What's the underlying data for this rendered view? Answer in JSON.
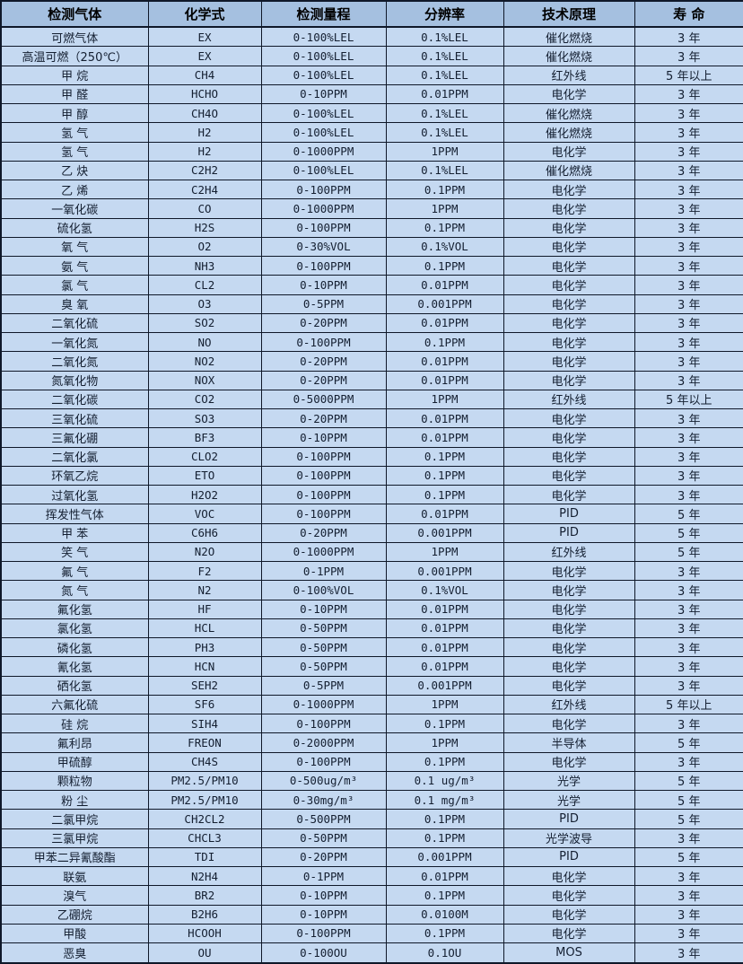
{
  "colors": {
    "header_bg": "#a5c0e0",
    "row_bg": "#c5d9f1",
    "border": "#0f1829",
    "text": "#141f31"
  },
  "table": {
    "columns": [
      "检测气体",
      "化学式",
      "检测量程",
      "分辨率",
      "技术原理",
      "寿 命"
    ],
    "column_keys": [
      "gas",
      "formula",
      "range",
      "resolution",
      "principle",
      "lifespan"
    ],
    "rows": [
      [
        "可燃气体",
        "EX",
        "0-100%LEL",
        "0.1%LEL",
        "催化燃烧",
        "3 年"
      ],
      [
        "高温可燃（250℃）",
        "EX",
        "0-100%LEL",
        "0.1%LEL",
        "催化燃烧",
        "3 年"
      ],
      [
        "甲 烷",
        "CH4",
        "0-100%LEL",
        "0.1%LEL",
        "红外线",
        "5 年以上"
      ],
      [
        "甲 醛",
        "HCHO",
        "0-10PPM",
        "0.01PPM",
        "电化学",
        "3 年"
      ],
      [
        "甲 醇",
        "CH4O",
        "0-100%LEL",
        "0.1%LEL",
        "催化燃烧",
        "3 年"
      ],
      [
        "氢 气",
        "H2",
        "0-100%LEL",
        "0.1%LEL",
        "催化燃烧",
        "3 年"
      ],
      [
        "氢 气",
        "H2",
        "0-1000PPM",
        "1PPM",
        "电化学",
        "3 年"
      ],
      [
        "乙 炔",
        "C2H2",
        "0-100%LEL",
        "0.1%LEL",
        "催化燃烧",
        "3 年"
      ],
      [
        "乙 烯",
        "C2H4",
        "0-100PPM",
        "0.1PPM",
        "电化学",
        "3 年"
      ],
      [
        "一氧化碳",
        "CO",
        "0-1000PPM",
        "1PPM",
        "电化学",
        "3 年"
      ],
      [
        "硫化氢",
        "H2S",
        "0-100PPM",
        "0.1PPM",
        "电化学",
        "3 年"
      ],
      [
        "氧 气",
        "O2",
        "0-30%VOL",
        "0.1%VOL",
        "电化学",
        "3 年"
      ],
      [
        "氨 气",
        "NH3",
        "0-100PPM",
        "0.1PPM",
        "电化学",
        "3 年"
      ],
      [
        "氯 气",
        "CL2",
        "0-10PPM",
        "0.01PPM",
        "电化学",
        "3 年"
      ],
      [
        "臭 氧",
        "O3",
        "0-5PPM",
        "0.001PPM",
        "电化学",
        "3 年"
      ],
      [
        "二氧化硫",
        "SO2",
        "0-20PPM",
        "0.01PPM",
        "电化学",
        "3 年"
      ],
      [
        "一氧化氮",
        "NO",
        "0-100PPM",
        "0.1PPM",
        "电化学",
        "3 年"
      ],
      [
        "二氧化氮",
        "NO2",
        "0-20PPM",
        "0.01PPM",
        "电化学",
        "3 年"
      ],
      [
        "氮氧化物",
        "NOX",
        "0-20PPM",
        "0.01PPM",
        "电化学",
        "3 年"
      ],
      [
        "二氧化碳",
        "CO2",
        "0-5000PPM",
        "1PPM",
        "红外线",
        "5 年以上"
      ],
      [
        "三氧化硫",
        "SO3",
        "0-20PPM",
        "0.01PPM",
        "电化学",
        "3 年"
      ],
      [
        "三氟化硼",
        "BF3",
        "0-10PPM",
        "0.01PPM",
        "电化学",
        "3 年"
      ],
      [
        "二氧化氯",
        "CLO2",
        "0-100PPM",
        "0.1PPM",
        "电化学",
        "3 年"
      ],
      [
        "环氧乙烷",
        "ETO",
        "0-100PPM",
        "0.1PPM",
        "电化学",
        "3 年"
      ],
      [
        "过氧化氢",
        "H2O2",
        "0-100PPM",
        "0.1PPM",
        "电化学",
        "3 年"
      ],
      [
        "挥发性气体",
        "VOC",
        "0-100PPM",
        "0.01PPM",
        "PID",
        "5 年"
      ],
      [
        "甲 苯",
        "C6H6",
        "0-20PPM",
        "0.001PPM",
        "PID",
        "5 年"
      ],
      [
        "笑 气",
        "N2O",
        "0-1000PPM",
        "1PPM",
        "红外线",
        "5 年"
      ],
      [
        "氟 气",
        "F2",
        "0-1PPM",
        "0.001PPM",
        "电化学",
        "3 年"
      ],
      [
        "氮 气",
        "N2",
        "0-100%VOL",
        "0.1%VOL",
        "电化学",
        "3 年"
      ],
      [
        "氟化氢",
        "HF",
        "0-10PPM",
        "0.01PPM",
        "电化学",
        "3 年"
      ],
      [
        "氯化氢",
        "HCL",
        "0-50PPM",
        "0.01PPM",
        "电化学",
        "3 年"
      ],
      [
        "磷化氢",
        "PH3",
        "0-50PPM",
        "0.01PPM",
        "电化学",
        "3 年"
      ],
      [
        "氰化氢",
        "HCN",
        "0-50PPM",
        "0.01PPM",
        "电化学",
        "3 年"
      ],
      [
        "硒化氢",
        "SEH2",
        "0-5PPM",
        "0.001PPM",
        "电化学",
        "3 年"
      ],
      [
        "六氟化硫",
        "SF6",
        "0-1000PPM",
        "1PPM",
        "红外线",
        "5 年以上"
      ],
      [
        "硅 烷",
        "SIH4",
        "0-100PPM",
        "0.1PPM",
        "电化学",
        "3 年"
      ],
      [
        "氟利昂",
        "FREON",
        "0-2000PPM",
        "1PPM",
        "半导体",
        "5 年"
      ],
      [
        "甲硫醇",
        "CH4S",
        "0-100PPM",
        "0.1PPM",
        "电化学",
        "3 年"
      ],
      [
        "颗粒物",
        "PM2.5/PM10",
        "0-500ug/m³",
        "0.1 ug/m³",
        "光学",
        "5 年"
      ],
      [
        "粉 尘",
        "PM2.5/PM10",
        "0-30mg/m³",
        "0.1 mg/m³",
        "光学",
        "5 年"
      ],
      [
        "二氯甲烷",
        "CH2CL2",
        "0-500PPM",
        "0.1PPM",
        "PID",
        "5 年"
      ],
      [
        "三氯甲烷",
        "CHCL3",
        "0-50PPM",
        "0.1PPM",
        "光学波导",
        "3 年"
      ],
      [
        "甲苯二异氰酸酯",
        "TDI",
        "0-20PPM",
        "0.001PPM",
        "PID",
        "5 年"
      ],
      [
        "联氨",
        "N2H4",
        "0-1PPM",
        "0.01PPM",
        "电化学",
        "3 年"
      ],
      [
        "溴气",
        "BR2",
        "0-10PPM",
        "0.1PPM",
        "电化学",
        "3 年"
      ],
      [
        "乙硼烷",
        "B2H6",
        "0-10PPM",
        "0.0100M",
        "电化学",
        "3 年"
      ],
      [
        "甲酸",
        "HCOOH",
        "0-100PPM",
        "0.1PPM",
        "电化学",
        "3 年"
      ],
      [
        "恶臭",
        "OU",
        "0-100OU",
        "0.1OU",
        "MOS",
        "3 年"
      ]
    ]
  }
}
